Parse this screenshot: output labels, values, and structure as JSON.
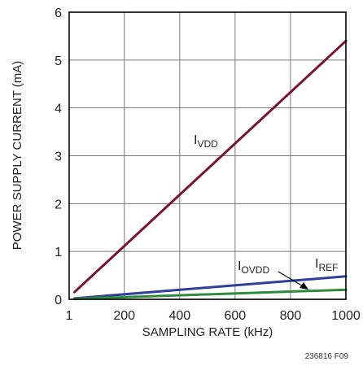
{
  "chart_data": {
    "type": "line",
    "xlabel": "SAMPLING RATE (kHz)",
    "ylabel": "POWER SUPPLY CURRENT (mA)",
    "xlim": [
      1,
      1000
    ],
    "ylim": [
      0,
      6
    ],
    "x_ticks": [
      1,
      200,
      400,
      600,
      800,
      1000
    ],
    "y_ticks": [
      0,
      1,
      2,
      3,
      4,
      5,
      6
    ],
    "grid": true,
    "figure_id": "236816 F09",
    "series": [
      {
        "name": "I",
        "sub": "VDD",
        "color": "#7a1230",
        "x": [
          20,
          1000
        ],
        "y": [
          0.15,
          5.4
        ]
      },
      {
        "name": "I",
        "sub": "OVDD",
        "color": "#2e3f9e",
        "x": [
          20,
          1000
        ],
        "y": [
          0.02,
          0.48
        ]
      },
      {
        "name": "I",
        "sub": "REF",
        "color": "#2e8a3c",
        "x": [
          20,
          1000
        ],
        "y": [
          0.01,
          0.2
        ]
      }
    ]
  }
}
